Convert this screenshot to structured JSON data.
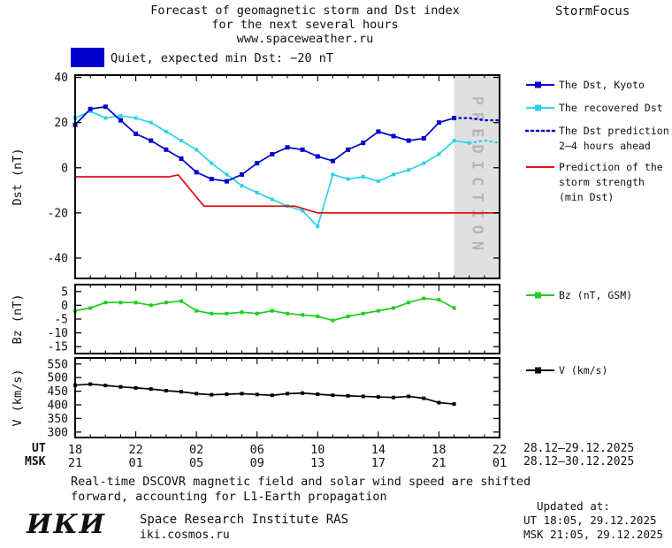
{
  "header": {
    "title_line1": "Forecast of geomagnetic storm and Dst index",
    "title_line2": "for the next several hours",
    "site": "www.spaceweather.ru",
    "brand": "StormFocus"
  },
  "status": {
    "quiet_text": "Quiet, expected min Dst: −20 nT"
  },
  "colors": {
    "dst_kyoto": "#0000cc",
    "recovered_dst": "#2ad4e8",
    "dst_prediction": "#0000cc",
    "storm_strength": "#dd1111",
    "bz": "#22cc22",
    "v": "#000000",
    "quiet_box": "#0000cc",
    "prediction_band": "#e0e0e0",
    "prediction_label": "#b5b5b5",
    "axis": "#000000",
    "text": "#111111"
  },
  "chart_data": {
    "type": "line",
    "title": "Forecast of geomagnetic storm and Dst index for the next several hours",
    "grid": false,
    "legend_position": "right",
    "x_axis": {
      "xlim": [
        18,
        46
      ],
      "ticks": [
        18,
        22,
        26,
        30,
        34,
        38,
        42,
        46
      ],
      "ut_label": "UT",
      "msk_label": "MSK",
      "ut_labels": [
        "18",
        "22",
        "02",
        "06",
        "10",
        "14",
        "18",
        "22"
      ],
      "msk_labels": [
        "21",
        "01",
        "05",
        "09",
        "13",
        "17",
        "21",
        "01"
      ],
      "ut_date_range": "28.12–29.12.2025",
      "msk_date_range": "28.12–30.12.2025"
    },
    "prediction_band": {
      "x_start": 43,
      "x_end": 46,
      "label": "PREDICTION"
    },
    "panels": [
      {
        "id": "dst",
        "ylabel": "Dst (nT)",
        "ylim": [
          -49,
          41
        ],
        "yticks": [
          40,
          20,
          0,
          -20,
          -40
        ],
        "series": [
          {
            "id": "recovered",
            "name": "The recovered Dst",
            "color": "#2ad4e8",
            "line": "solid",
            "marker": "square",
            "marker_size": 4,
            "x": [
              18,
              19,
              20,
              21,
              22,
              23,
              24,
              25,
              26,
              27,
              28,
              29,
              30,
              31,
              32,
              33,
              34,
              35,
              36,
              37,
              38,
              39,
              40,
              41,
              42,
              43,
              44
            ],
            "y": [
              22,
              25,
              22,
              23,
              22,
              20,
              16,
              12,
              8,
              2,
              -3,
              -8,
              -11,
              -14,
              -17,
              -19,
              -26,
              -3,
              -5,
              -4,
              -6,
              -3,
              -1,
              2,
              6,
              12,
              11
            ]
          },
          {
            "id": "recovered_prediction",
            "name": "The recovered Dst (ahead)",
            "color": "#2ad4e8",
            "line": "dotted",
            "marker": "none",
            "x": [
              44,
              45,
              46
            ],
            "y": [
              11,
              12,
              11
            ]
          },
          {
            "id": "storm_strength",
            "name": "Prediction of the storm strength (min Dst)",
            "color": "#dd1111",
            "line": "solid",
            "marker": "none",
            "x": [
              18,
              24.2,
              24.8,
              26.5,
              32.5,
              34,
              46
            ],
            "y": [
              -4,
              -4,
              -3.2,
              -17,
              -17,
              -20,
              -20
            ]
          },
          {
            "id": "dst_kyoto",
            "name": "The Dst, Kyoto",
            "color": "#0000cc",
            "line": "solid",
            "marker": "square",
            "marker_size": 5,
            "x": [
              18,
              19,
              20,
              21,
              22,
              23,
              24,
              25,
              26,
              27,
              28,
              29,
              30,
              31,
              32,
              33,
              34,
              35,
              36,
              37,
              38,
              39,
              40,
              41,
              42,
              43
            ],
            "y": [
              19,
              26,
              27,
              21,
              15,
              12,
              8,
              4,
              -2,
              -5,
              -6,
              -3,
              2,
              6,
              9,
              8,
              5,
              3,
              8,
              11,
              16,
              14,
              12,
              13,
              20,
              22
            ]
          },
          {
            "id": "dst_prediction",
            "name": "The Dst prediction 2–4 hours ahead",
            "color": "#0000cc",
            "line": "dotted",
            "marker": "none",
            "x": [
              43,
              44,
              45,
              46
            ],
            "y": [
              22,
              22,
              21,
              21
            ]
          }
        ]
      },
      {
        "id": "bz",
        "ylabel": "Bz (nT)",
        "ylim": [
          -17.5,
          7.5
        ],
        "yticks": [
          5,
          0,
          -5,
          -10,
          -15
        ],
        "series": [
          {
            "id": "bz",
            "name": "Bz (nT, GSM)",
            "color": "#22cc22",
            "line": "solid",
            "marker": "square",
            "marker_size": 4,
            "x": [
              18,
              19,
              20,
              21,
              22,
              23,
              24,
              25,
              26,
              27,
              28,
              29,
              30,
              31,
              32,
              33,
              34,
              35,
              36,
              37,
              38,
              39,
              40,
              41,
              42,
              43
            ],
            "y": [
              -2,
              -1,
              1,
              1,
              1,
              0,
              1,
              1.5,
              -2,
              -3,
              -3,
              -2.5,
              -3,
              -2,
              -3,
              -3.5,
              -4,
              -5.5,
              -4,
              -3,
              -2,
              -1,
              1,
              2.5,
              2,
              -1
            ]
          }
        ]
      },
      {
        "id": "v",
        "ylabel": "V (km/s)",
        "ylim": [
          280,
          572
        ],
        "yticks": [
          550,
          500,
          450,
          400,
          350,
          300
        ],
        "series": [
          {
            "id": "v",
            "name": "V (km/s)",
            "color": "#000000",
            "line": "solid",
            "marker": "square",
            "marker_size": 4,
            "x": [
              18,
              19,
              20,
              21,
              22,
              23,
              24,
              25,
              26,
              27,
              28,
              29,
              30,
              31,
              32,
              33,
              34,
              35,
              36,
              37,
              38,
              39,
              40,
              41,
              42,
              43
            ],
            "y": [
              472,
              476,
              471,
              466,
              462,
              458,
              452,
              448,
              441,
              437,
              439,
              441,
              438,
              435,
              441,
              443,
              439,
              435,
              433,
              431,
              429,
              427,
              431,
              424,
              408,
              403
            ]
          }
        ]
      }
    ]
  },
  "legend": {
    "items": [
      {
        "label": "The Dst, Kyoto",
        "color": "#0000cc",
        "swatch": "solid-square"
      },
      {
        "label": "The recovered Dst",
        "color": "#2ad4e8",
        "swatch": "solid-square"
      },
      {
        "label": "The Dst prediction",
        "label2": "2–4 hours ahead",
        "color": "#0000cc",
        "swatch": "dotted"
      },
      {
        "label": "Prediction of the",
        "label2": "storm strength",
        "label3": "(min Dst)",
        "color": "#dd1111",
        "swatch": "solid"
      },
      {
        "label": "Bz (nT, GSM)",
        "color": "#22cc22",
        "swatch": "solid-square"
      },
      {
        "label": "V (km/s)",
        "color": "#000000",
        "swatch": "solid-square"
      }
    ]
  },
  "footer": {
    "note_line1": "Real-time DSCOVR magnetic field and solar wind speed are shifted",
    "note_line2": "forward, accounting for L1-Earth propagation",
    "updated_label": "Updated at:",
    "updated_ut": "UT  18:05, 29.12.2025",
    "updated_msk": "MSK 21:05, 29.12.2025",
    "logo": "ИКИ",
    "institute": "Space Research Institute RAS",
    "institute_site": "iki.cosmos.ru"
  }
}
